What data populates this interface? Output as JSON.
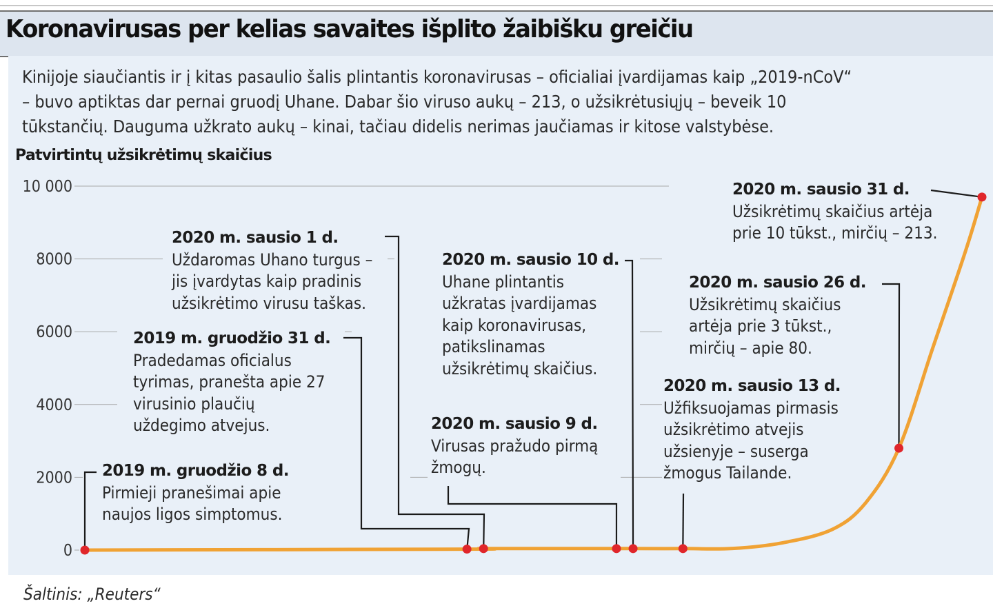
{
  "title": "Koronavirusas per kelias savaites išplito žaibišku greičiu",
  "intro": [
    "Kinijoje siaučiantis ir į kitas pasaulio šalis plintantis koronavirusas – oficialiai įvardijamas kaip „2019-nCoV“",
    "– buvo aptiktas dar pernai gruodį Uhane. Dabar šio viruso aukų – 213, o užsikrėtusiųjų – beveik 10",
    "tūkstančių. Dauguma užkrato aukų – kinai, tačiau didelis nerimas jaučiamas ir kitose valstybėse."
  ],
  "source": "Šaltinis: „Reuters“",
  "colors": {
    "curve": "#f0a234",
    "points": "#e0262b",
    "panel": "#e9f0f8",
    "titlebar": "#dde5ef"
  },
  "chart_data": {
    "type": "line",
    "ylabel": "Patvirtintų užsikrėtimų skaičius",
    "ylim": [
      0,
      10000
    ],
    "yticks": [
      {
        "value": 0,
        "label": "0"
      },
      {
        "value": 2000,
        "label": "2000"
      },
      {
        "value": 4000,
        "label": "4000"
      },
      {
        "value": 6000,
        "label": "6000"
      },
      {
        "value": 8000,
        "label": "8000"
      },
      {
        "value": 10000,
        "label": "10 000"
      }
    ],
    "grid": true,
    "x_start": "2019-12-08",
    "xlim": [
      "2019-12-08",
      "2020-01-31"
    ],
    "series": [
      {
        "x": [
          "2019-12-08",
          "2019-12-31",
          "2020-01-01",
          "2020-01-09",
          "2020-01-10",
          "2020-01-13",
          "2020-01-16",
          "2020-01-19",
          "2020-01-22",
          "2020-01-24",
          "2020-01-26",
          "2020-01-28",
          "2020-01-30",
          "2020-01-31"
        ],
        "y": [
          0,
          27,
          41,
          41,
          41,
          41,
          45,
          200,
          570,
          1300,
          2800,
          5500,
          8200,
          9700
        ]
      }
    ],
    "markers": [
      {
        "date": "2019-12-08",
        "value": 0
      },
      {
        "date": "2019-12-31",
        "value": 27
      },
      {
        "date": "2020-01-01",
        "value": 41
      },
      {
        "date": "2020-01-09",
        "value": 41
      },
      {
        "date": "2020-01-10",
        "value": 41
      },
      {
        "date": "2020-01-13",
        "value": 41
      },
      {
        "date": "2020-01-26",
        "value": 2800
      },
      {
        "date": "2020-01-31",
        "value": 9700
      }
    ],
    "annotations": [
      {
        "id": "a1",
        "date_label": "2019 m. gruodžio 8 d.",
        "lines": [
          "Pirmieji pranešimai apie",
          "naujos ligos simptomus."
        ]
      },
      {
        "id": "a2",
        "date_label": "2019 m. gruodžio 31 d.",
        "lines": [
          "Pradedamas oficialus",
          "tyrimas, pranešta apie 27",
          "virusinio plaučių",
          "uždegimo atvejus."
        ]
      },
      {
        "id": "a3",
        "date_label": "2020 m. sausio 1 d.",
        "lines": [
          "Uždaromas Uhano turgus –",
          "jis įvardytas kaip pradinis",
          "užsikrėtimo virusu taškas."
        ]
      },
      {
        "id": "a4",
        "date_label": "2020 m. sausio 9 d.",
        "lines": [
          "Virusas pražudo pirmą",
          "žmogų."
        ]
      },
      {
        "id": "a5",
        "date_label": "2020 m. sausio 10 d.",
        "lines": [
          "Uhane plintantis",
          "užkratas įvardijamas",
          "kaip koronavirusas,",
          "patikslinamas",
          "užsikrėtimų skaičius."
        ]
      },
      {
        "id": "a6",
        "date_label": "2020 m.  sausio 13 d.",
        "lines": [
          "Užfiksuojamas pirmasis",
          "užsikrėtimo atvejis",
          "užsienyje – suserga",
          "žmogus Tailande."
        ]
      },
      {
        "id": "a7",
        "date_label": "2020 m. sausio 26 d.",
        "lines": [
          "Užsikrėtimų skaičius",
          "artėja prie 3 tūkst.,",
          "mirčių – apie 80."
        ]
      },
      {
        "id": "a8",
        "date_label": "2020 m. sausio 31 d.",
        "lines": [
          "Užsikrėtimų skaičius artėja",
          "prie 10 tūkst., mirčių – 213."
        ]
      }
    ]
  }
}
